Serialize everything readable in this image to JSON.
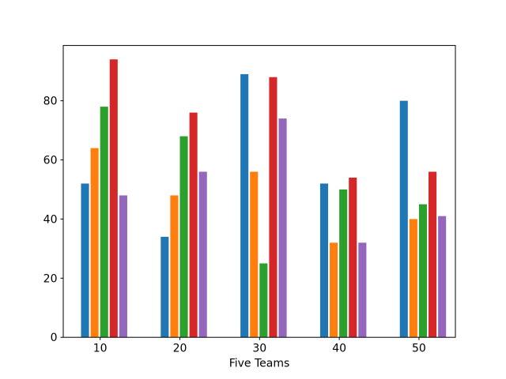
{
  "chart_data": {
    "type": "bar",
    "xlabel": "Five Teams",
    "categories": [
      10,
      20,
      30,
      40,
      50
    ],
    "series": [
      {
        "name": "blue",
        "color": "#1f77b4",
        "values": [
          52,
          34,
          89,
          52,
          80
        ]
      },
      {
        "name": "orange",
        "color": "#ff7f0e",
        "values": [
          64,
          48,
          56,
          32,
          40
        ]
      },
      {
        "name": "green",
        "color": "#2ca02c",
        "values": [
          78,
          68,
          25,
          50,
          45
        ]
      },
      {
        "name": "red",
        "color": "#d62728",
        "values": [
          94,
          76,
          88,
          54,
          56
        ]
      },
      {
        "name": "purple",
        "color": "#9467bd",
        "values": [
          48,
          56,
          74,
          32,
          41
        ]
      }
    ],
    "xticks": [
      10,
      20,
      30,
      40,
      50
    ],
    "yticks": [
      0,
      20,
      40,
      60,
      80
    ],
    "xlim": [
      5.37,
      54.57
    ],
    "ylim": [
      0,
      98.7
    ],
    "bar_width": 1.0,
    "bar_left_offsets": [
      -2.4,
      -1.2,
      0,
      1.2,
      2.4
    ],
    "grid": false,
    "legend": false,
    "axis_color": "#000000",
    "background": "#ffffff"
  }
}
